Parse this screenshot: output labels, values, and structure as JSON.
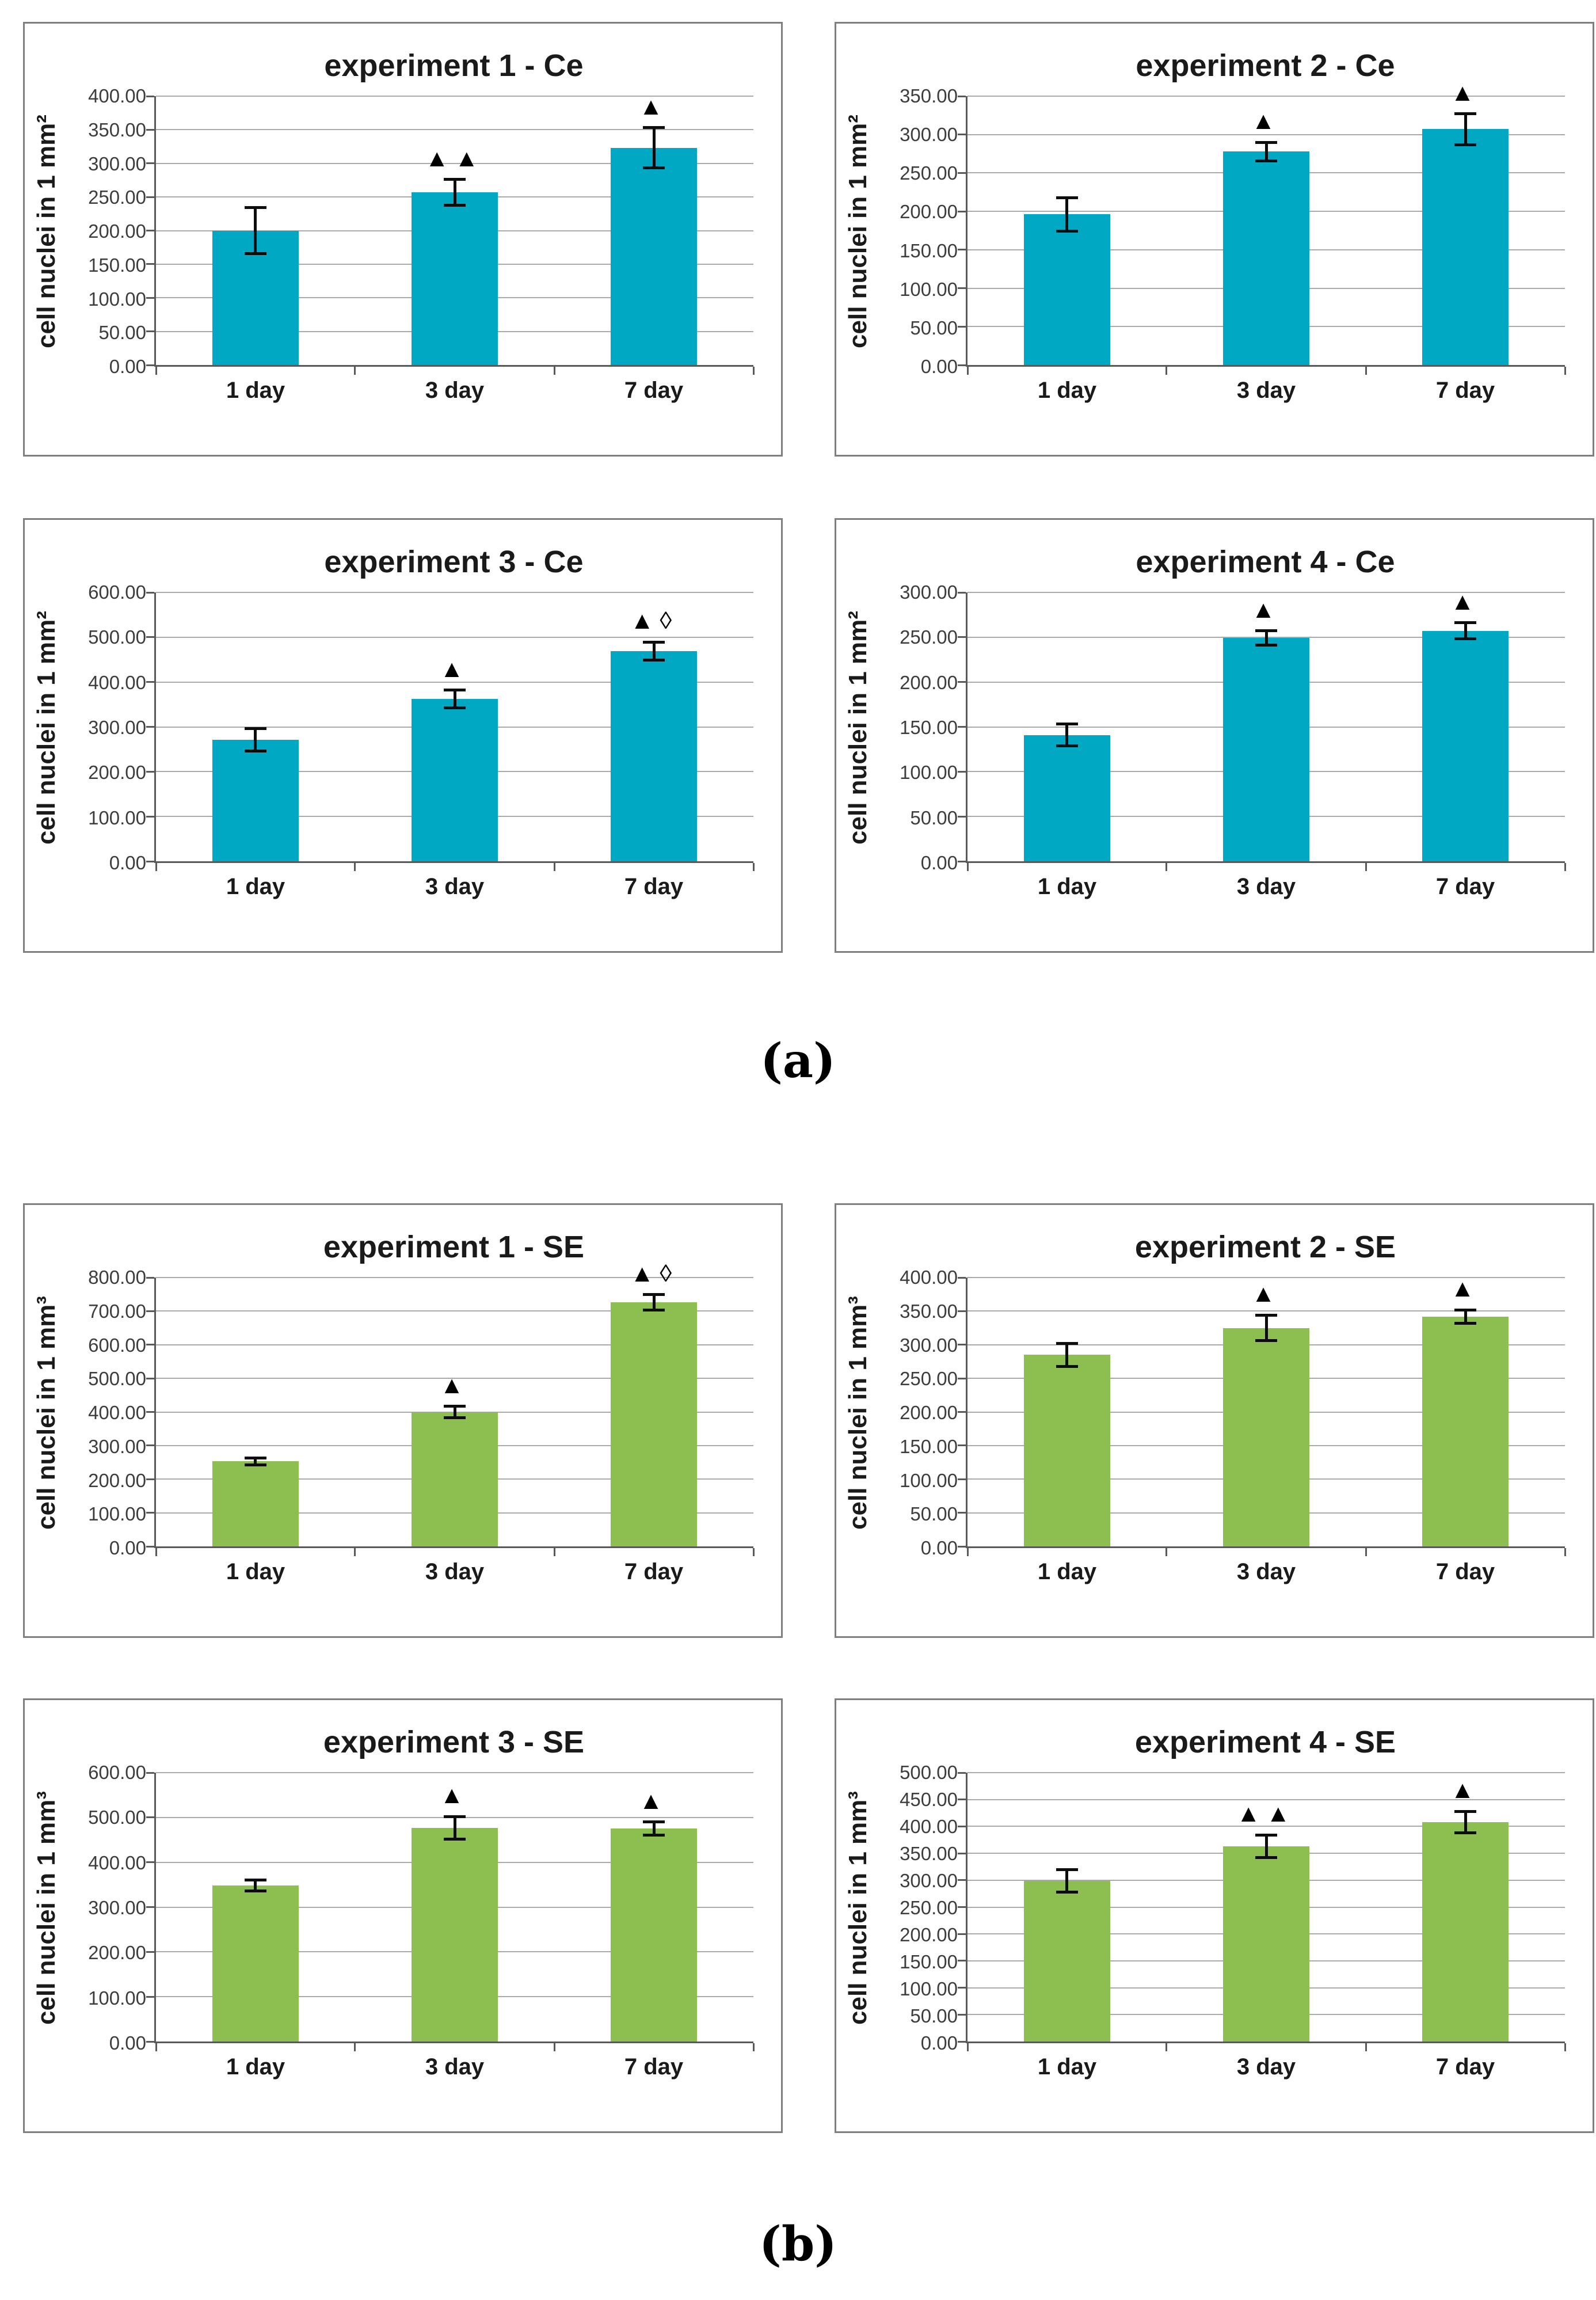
{
  "figure": {
    "background": "#ffffff",
    "section_labels": {
      "a": "(a)",
      "b": "(b)"
    }
  },
  "colors": {
    "ce_bar": "#00a8c3",
    "se_bar": "#8cbf50",
    "gridline": "#aaaaaa",
    "axis": "#595959",
    "panel_border": "#7f7f7f",
    "error_bar": "#0d0d0d",
    "title_text": "#1a1a1a",
    "tick_text": "#3d3d3d"
  },
  "chart_data": [
    {
      "id": "exp1-ce",
      "row": "a1",
      "type": "bar",
      "title": "experiment 1 - Ce",
      "ylabel": "cell nuclei in 1 mm²",
      "ylim": [
        0,
        400
      ],
      "ystep": 50,
      "grid": true,
      "legend_position": "none",
      "categories": [
        "1 day",
        "3 day",
        "7 day"
      ],
      "values": [
        200,
        257,
        323
      ],
      "errors": [
        34,
        19,
        30
      ],
      "annotations": [
        "",
        "▲▲",
        "▲"
      ],
      "bar_color": "#00a8c3"
    },
    {
      "id": "exp2-ce",
      "row": "a1",
      "type": "bar",
      "title": "experiment 2 - Ce",
      "ylabel": "cell nuclei in 1 mm²",
      "ylim": [
        0,
        350
      ],
      "ystep": 50,
      "grid": true,
      "legend_position": "none",
      "categories": [
        "1 day",
        "3 day",
        "7 day"
      ],
      "values": [
        196,
        278,
        307
      ],
      "errors": [
        22,
        12,
        20
      ],
      "annotations": [
        "",
        "▲",
        "▲"
      ],
      "bar_color": "#00a8c3"
    },
    {
      "id": "exp3-ce",
      "row": "a2",
      "type": "bar",
      "title": "experiment 3 - Ce",
      "ylabel": "cell nuclei in 1 mm²",
      "ylim": [
        0,
        600
      ],
      "ystep": 100,
      "grid": true,
      "legend_position": "none",
      "categories": [
        "1 day",
        "3 day",
        "7 day"
      ],
      "values": [
        271,
        362,
        469
      ],
      "errors": [
        25,
        20,
        20
      ],
      "annotations": [
        "",
        "▲",
        "▲◊"
      ],
      "bar_color": "#00a8c3"
    },
    {
      "id": "exp4-ce",
      "row": "a2",
      "type": "bar",
      "title": "experiment 4 - Ce",
      "ylabel": "cell nuclei in 1 mm²",
      "ylim": [
        0,
        300
      ],
      "ystep": 50,
      "grid": true,
      "legend_position": "none",
      "categories": [
        "1 day",
        "3 day",
        "7 day"
      ],
      "values": [
        141,
        249,
        257
      ],
      "errors": [
        12,
        8,
        9
      ],
      "annotations": [
        "",
        "▲",
        "▲"
      ],
      "bar_color": "#00a8c3"
    },
    {
      "id": "exp1-se",
      "row": "b1",
      "type": "bar",
      "title": "experiment 1 - SE",
      "ylabel": "cell nuclei in 1 mm³",
      "ylim": [
        0,
        800
      ],
      "ystep": 100,
      "grid": true,
      "legend_position": "none",
      "categories": [
        "1 day",
        "3 day",
        "7 day"
      ],
      "values": [
        253,
        400,
        726
      ],
      "errors": [
        10,
        17,
        23
      ],
      "annotations": [
        "",
        "▲",
        "▲◊"
      ],
      "bar_color": "#8cbf50"
    },
    {
      "id": "exp2-se",
      "row": "b1",
      "type": "bar",
      "title": "experiment 2 - SE",
      "ylabel": "cell nuclei in 1 mm³",
      "ylim": [
        0,
        400
      ],
      "ystep": 50,
      "grid": true,
      "legend_position": "none",
      "categories": [
        "1 day",
        "3 day",
        "7 day"
      ],
      "values": [
        285,
        325,
        342
      ],
      "errors": [
        17,
        19,
        10
      ],
      "annotations": [
        "",
        "▲",
        "▲"
      ],
      "bar_color": "#8cbf50"
    },
    {
      "id": "exp3-se",
      "row": "b2",
      "type": "bar",
      "title": "experiment 3 - SE",
      "ylabel": "cell nuclei in 1 mm³",
      "ylim": [
        0,
        600
      ],
      "ystep": 100,
      "grid": true,
      "legend_position": "none",
      "categories": [
        "1 day",
        "3 day",
        "7 day"
      ],
      "values": [
        348,
        477,
        475
      ],
      "errors": [
        12,
        25,
        15
      ],
      "annotations": [
        "",
        "▲",
        "▲"
      ],
      "bar_color": "#8cbf50"
    },
    {
      "id": "exp4-se",
      "row": "b2",
      "type": "bar",
      "title": "experiment 4 - SE",
      "ylabel": "cell nuclei in 1 mm³",
      "ylim": [
        0,
        500
      ],
      "ystep": 50,
      "grid": true,
      "legend_position": "none",
      "categories": [
        "1 day",
        "3 day",
        "7 day"
      ],
      "values": [
        299,
        363,
        408
      ],
      "errors": [
        21,
        21,
        20
      ],
      "annotations": [
        "",
        "▲▲",
        "▲"
      ],
      "bar_color": "#8cbf50"
    }
  ],
  "layout": {
    "rows": {
      "a1": 38,
      "a2": 900,
      "b1": 2090,
      "b2": 2950
    },
    "section_label_tops": {
      "a": 1795,
      "b": 3850
    }
  }
}
